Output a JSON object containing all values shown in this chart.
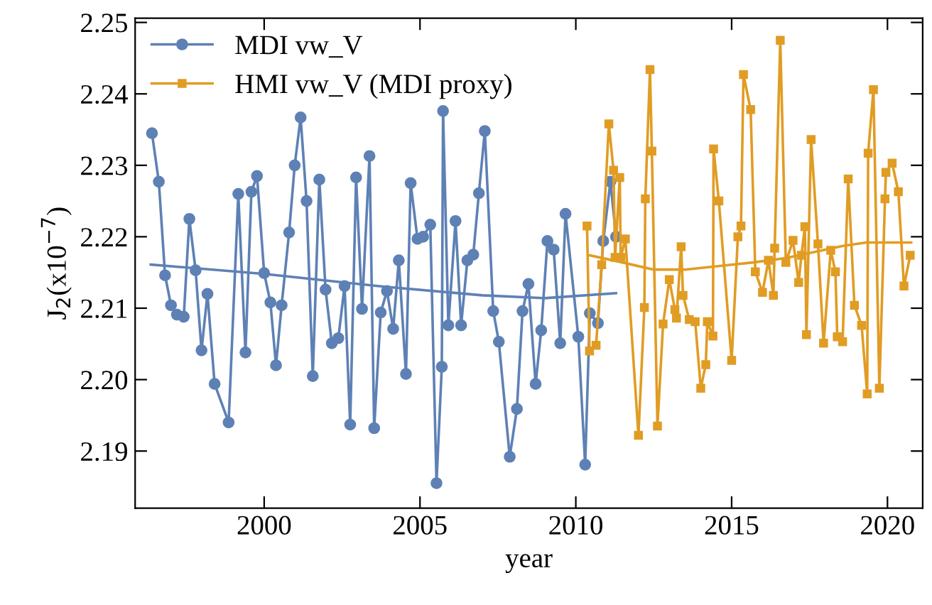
{
  "chart_data": {
    "type": "line",
    "xlabel": "year",
    "ylabel": "J$_{2}$(x10$^{−7}$)",
    "xlim": [
      1995.86,
      2021.13
    ],
    "xticks": [
      2000,
      2005,
      2010,
      2015,
      2020
    ],
    "ylim": [
      2.182,
      2.2506
    ],
    "yticks": [
      2.19,
      {
        "value": 2.2,
        "label": "2.20"
      },
      2.21,
      2.22,
      2.23,
      2.24,
      2.25
    ],
    "grid": false,
    "legend": "top left",
    "series": [
      {
        "name": "MDI vw_V",
        "color": "#5e81b5",
        "marker": "circle",
        "x": [
          1996.4,
          1996.62,
          1996.82,
          1997.01,
          1997.2,
          1997.42,
          1997.6,
          1997.8,
          1997.99,
          1998.18,
          1998.41,
          1998.86,
          1999.17,
          1999.4,
          1999.59,
          1999.77,
          2000.0,
          2000.2,
          2000.38,
          2000.56,
          2000.8,
          2000.98,
          2001.17,
          2001.36,
          2001.56,
          2001.77,
          2001.97,
          2002.17,
          2002.38,
          2002.58,
          2002.76,
          2002.95,
          2003.14,
          2003.38,
          2003.53,
          2003.74,
          2003.94,
          2004.14,
          2004.32,
          2004.55,
          2004.7,
          2004.92,
          2005.1,
          2005.33,
          2005.53,
          2005.7,
          2005.74,
          2005.91,
          2006.14,
          2006.32,
          2006.52,
          2006.71,
          2006.89,
          2007.08,
          2007.35,
          2007.53,
          2007.88,
          2008.11,
          2008.29,
          2008.48,
          2008.71,
          2008.89,
          2009.09,
          2009.29,
          2009.5,
          2009.67,
          2010.08,
          2010.3,
          2010.45,
          2010.71,
          2010.88,
          2011.11,
          2011.29
        ],
        "values": [
          2.2345,
          2.2277,
          2.2146,
          2.2104,
          2.2091,
          2.2088,
          2.2225,
          2.2153,
          2.2041,
          2.212,
          2.1994,
          2.194,
          2.226,
          2.2038,
          2.2263,
          2.2285,
          2.2149,
          2.2108,
          2.202,
          2.2104,
          2.2206,
          2.23,
          2.2367,
          2.225,
          2.2005,
          2.228,
          2.2126,
          2.2051,
          2.2058,
          2.2131,
          2.1937,
          2.2283,
          2.2099,
          2.2313,
          2.1932,
          2.2094,
          2.2124,
          2.2071,
          2.2167,
          2.2008,
          2.2275,
          2.2197,
          2.22,
          2.2217,
          2.1855,
          2.2018,
          2.2376,
          2.2076,
          2.2222,
          2.2076,
          2.2167,
          2.2175,
          2.2261,
          2.2348,
          2.2096,
          2.2053,
          2.1892,
          2.1959,
          2.2096,
          2.2134,
          2.1994,
          2.2069,
          2.2194,
          2.2182,
          2.2051,
          2.2232,
          2.206,
          2.1881,
          2.2093,
          2.2079,
          2.2194,
          2.2277,
          2.22
        ]
      },
      {
        "name": "HMI vw_V (MDI proxy)",
        "color": "#e19c24",
        "marker": "square",
        "x": [
          2010.36,
          2010.44,
          2010.65,
          2010.83,
          2011.06,
          2011.21,
          2011.26,
          2011.41,
          2011.44,
          2011.59,
          2012.01,
          2012.2,
          2012.23,
          2012.38,
          2012.44,
          2012.62,
          2012.8,
          2013.0,
          2013.18,
          2013.23,
          2013.38,
          2013.44,
          2013.64,
          2013.83,
          2014.01,
          2014.17,
          2014.22,
          2014.4,
          2014.42,
          2014.59,
          2015.0,
          2015.2,
          2015.3,
          2015.38,
          2015.61,
          2015.76,
          2015.99,
          2016.18,
          2016.34,
          2016.38,
          2016.56,
          2016.74,
          2016.97,
          2017.15,
          2017.24,
          2017.35,
          2017.4,
          2017.55,
          2017.77,
          2017.95,
          2018.18,
          2018.33,
          2018.39,
          2018.56,
          2018.74,
          2018.94,
          2019.17,
          2019.35,
          2019.38,
          2019.55,
          2019.74,
          2019.92,
          2019.95,
          2020.15,
          2020.35,
          2020.53,
          2020.73
        ],
        "values": [
          2.2215,
          2.204,
          2.2048,
          2.2161,
          2.2358,
          2.2293,
          2.2171,
          2.2283,
          2.2171,
          2.2197,
          2.1922,
          2.2101,
          2.2253,
          2.2434,
          2.232,
          2.1935,
          2.2078,
          2.214,
          2.2098,
          2.2086,
          2.2186,
          2.2118,
          2.2084,
          2.2081,
          2.1988,
          2.2021,
          2.2081,
          2.2061,
          2.2323,
          2.225,
          2.2027,
          2.22,
          2.2215,
          2.2427,
          2.2378,
          2.2151,
          2.2122,
          2.2167,
          2.2118,
          2.2184,
          2.2475,
          2.2164,
          2.2195,
          2.2136,
          2.2174,
          2.2214,
          2.2063,
          2.2336,
          2.219,
          2.2051,
          2.2181,
          2.2151,
          2.206,
          2.2053,
          2.2281,
          2.2104,
          2.2076,
          2.198,
          2.2317,
          2.2406,
          2.1988,
          2.2253,
          2.229,
          2.2303,
          2.2263,
          2.2131,
          2.2174
        ]
      },
      {
        "type": "line",
        "color": "#5e81b5",
        "marker": "none",
        "x": [
          1996.36,
          2000.0,
          2003.86,
          2007.0,
          2009.0,
          2011.29
        ],
        "values": [
          2.2161,
          2.2148,
          2.213,
          2.2118,
          2.2114,
          2.2121
        ]
      },
      {
        "type": "line",
        "color": "#e19c24",
        "marker": "none",
        "x": [
          2010.45,
          2011.5,
          2012.5,
          2013.5,
          2015.68,
          2016.73,
          2018.55,
          2019.32,
          2020.76
        ],
        "values": [
          2.2174,
          2.2164,
          2.2154,
          2.2154,
          2.2164,
          2.217,
          2.2187,
          2.2192,
          2.2192
        ]
      }
    ]
  }
}
